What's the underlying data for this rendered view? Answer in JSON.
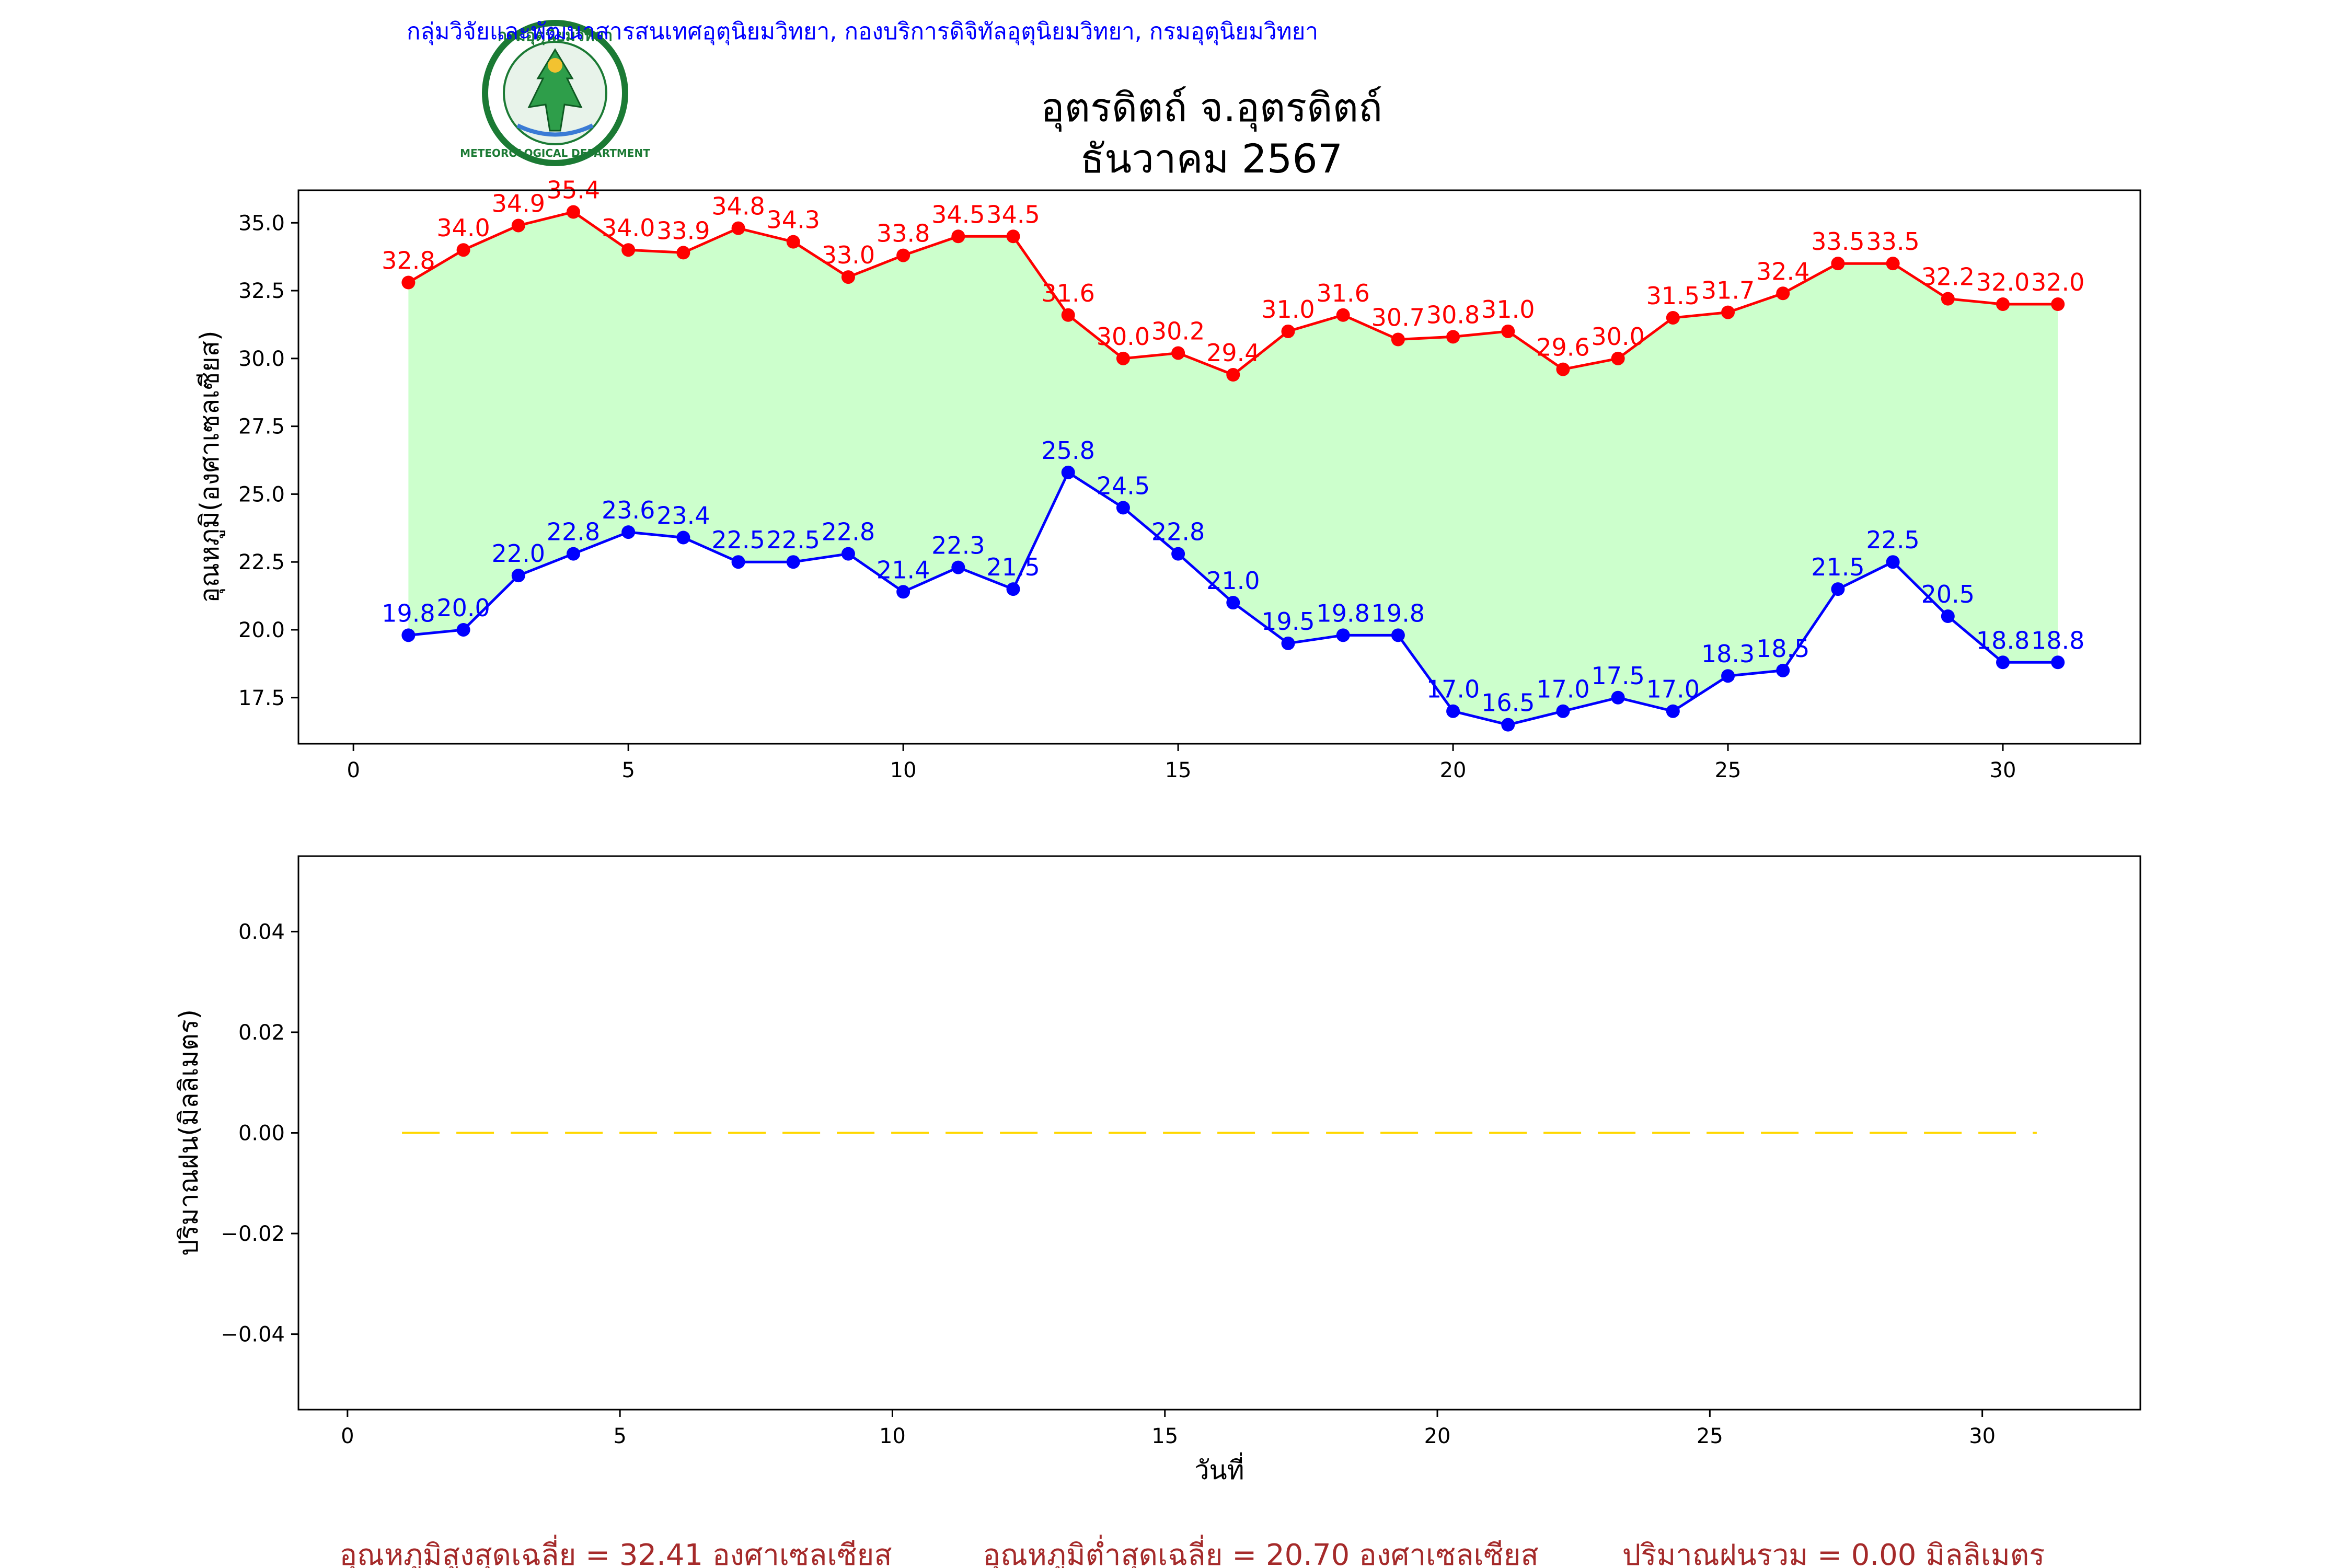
{
  "header": {
    "agency_line": "กลุ่มวิจัยและพัฒนาสารสนเทศอุตุนิยมวิทยา, กองบริการดิจิทัลอุตุนิยมวิทยา, กรมอุตุนิยมวิทยา",
    "title_line1": "อุตรดิตถ์ จ.อุตรดิตถ์",
    "title_line2": "ธันวาคม 2567",
    "logo_text_top": "กรมอุตุนิยมวิทยา",
    "logo_text_bottom": "METEOROLOGICAL DEPARTMENT"
  },
  "colors": {
    "max_line": "#ff0000",
    "min_line": "#0000ff",
    "fill_between": "#ccffcc",
    "rain_line": "#ffd700",
    "header_text": "#0000ff",
    "summary_text": "#a52a2a"
  },
  "chart_data": [
    {
      "type": "line",
      "ylabel": "อุณหภูมิ(องศาเซลเซียส)",
      "xlabel": "",
      "xlim": [
        -1,
        32.5
      ],
      "ylim": [
        15.8,
        36.2
      ],
      "xticks": [
        0,
        5,
        10,
        15,
        20,
        25,
        30
      ],
      "yticks": [
        17.5,
        20.0,
        22.5,
        25.0,
        27.5,
        30.0,
        32.5,
        35.0
      ],
      "ytick_labels": [
        "17.5",
        "20.0",
        "22.5",
        "25.0",
        "27.5",
        "30.0",
        "32.5",
        "35.0"
      ],
      "x": [
        1,
        2,
        3,
        4,
        5,
        6,
        7,
        8,
        9,
        10,
        11,
        12,
        13,
        14,
        15,
        16,
        17,
        18,
        19,
        20,
        21,
        22,
        23,
        24,
        25,
        26,
        27,
        28,
        29,
        30,
        31
      ],
      "series": [
        {
          "key": "max",
          "values": [
            32.8,
            34.0,
            34.9,
            35.4,
            34.0,
            33.9,
            34.8,
            34.3,
            33.0,
            33.8,
            34.5,
            34.5,
            31.6,
            30.0,
            30.2,
            29.4,
            31.0,
            31.6,
            30.7,
            30.8,
            31.0,
            29.6,
            30.0,
            31.5,
            31.7,
            32.4,
            33.5,
            33.5,
            32.2,
            32.0,
            32.0
          ],
          "labels": [
            "32.8",
            "34.0",
            "34.9",
            "35.4",
            "34.0",
            "33.9",
            "34.8",
            "34.3",
            "33.0",
            "33.8",
            "34.5",
            "34.5",
            "31.6",
            "30.0",
            "30.2",
            "29.4",
            "31.0",
            "31.6",
            "30.7",
            "30.8",
            "31.0",
            "29.6",
            "30.0",
            "31.5",
            "31.7",
            "32.4",
            "33.5",
            "33.5",
            "32.2",
            "32.0",
            "32.0"
          ]
        },
        {
          "key": "min",
          "values": [
            19.8,
            20.0,
            22.0,
            22.8,
            23.6,
            23.4,
            22.5,
            22.5,
            22.8,
            21.4,
            22.3,
            21.5,
            25.8,
            24.5,
            22.8,
            21.0,
            19.5,
            19.8,
            19.8,
            17.0,
            16.5,
            17.0,
            17.5,
            17.0,
            18.3,
            18.5,
            21.5,
            22.5,
            20.5,
            18.8,
            18.8
          ],
          "labels": [
            "19.8",
            "20.0",
            "22.0",
            "22.8",
            "23.6",
            "23.4",
            "22.5",
            "22.5",
            "22.8",
            "21.4",
            "22.3",
            "21.5",
            "25.8",
            "24.5",
            "22.8",
            "21.0",
            "19.5",
            "19.8",
            "19.8",
            "17.0",
            "16.5",
            "17.0",
            "17.5",
            "17.0",
            "18.3",
            "18.5",
            "21.5",
            "22.5",
            "20.5",
            "18.8",
            "18.8"
          ]
        }
      ],
      "fill_between": true,
      "grid": false
    },
    {
      "type": "line",
      "ylabel": "ปริมาณฝน(มิลลิเมตร)",
      "xlabel": "วันที่",
      "xlim": [
        -0.9,
        32.9
      ],
      "ylim": [
        -0.055,
        0.055
      ],
      "xticks": [
        0,
        5,
        10,
        15,
        20,
        25,
        30
      ],
      "yticks": [
        -0.04,
        -0.02,
        0.0,
        0.02,
        0.04
      ],
      "ytick_labels": [
        "−0.04",
        "−0.02",
        "0.00",
        "0.02",
        "0.04"
      ],
      "x": [
        1,
        2,
        3,
        4,
        5,
        6,
        7,
        8,
        9,
        10,
        11,
        12,
        13,
        14,
        15,
        16,
        17,
        18,
        19,
        20,
        21,
        22,
        23,
        24,
        25,
        26,
        27,
        28,
        29,
        30,
        31
      ],
      "series": [
        {
          "key": "rain",
          "values": [
            0,
            0,
            0,
            0,
            0,
            0,
            0,
            0,
            0,
            0,
            0,
            0,
            0,
            0,
            0,
            0,
            0,
            0,
            0,
            0,
            0,
            0,
            0,
            0,
            0,
            0,
            0,
            0,
            0,
            0,
            0
          ],
          "style": "dashed"
        }
      ],
      "grid": false
    }
  ],
  "summary": {
    "avg_max": "อุณหภูมิสูงสุดเฉลี่ย = 32.41 องศาเซลเซียส",
    "avg_min": "อุณหภูมิต่ำสุดเฉลี่ย = 20.70 องศาเซลเซียส",
    "total_rain": "ปริมาณฝนรวม = 0.00 มิลลิเมตร"
  }
}
